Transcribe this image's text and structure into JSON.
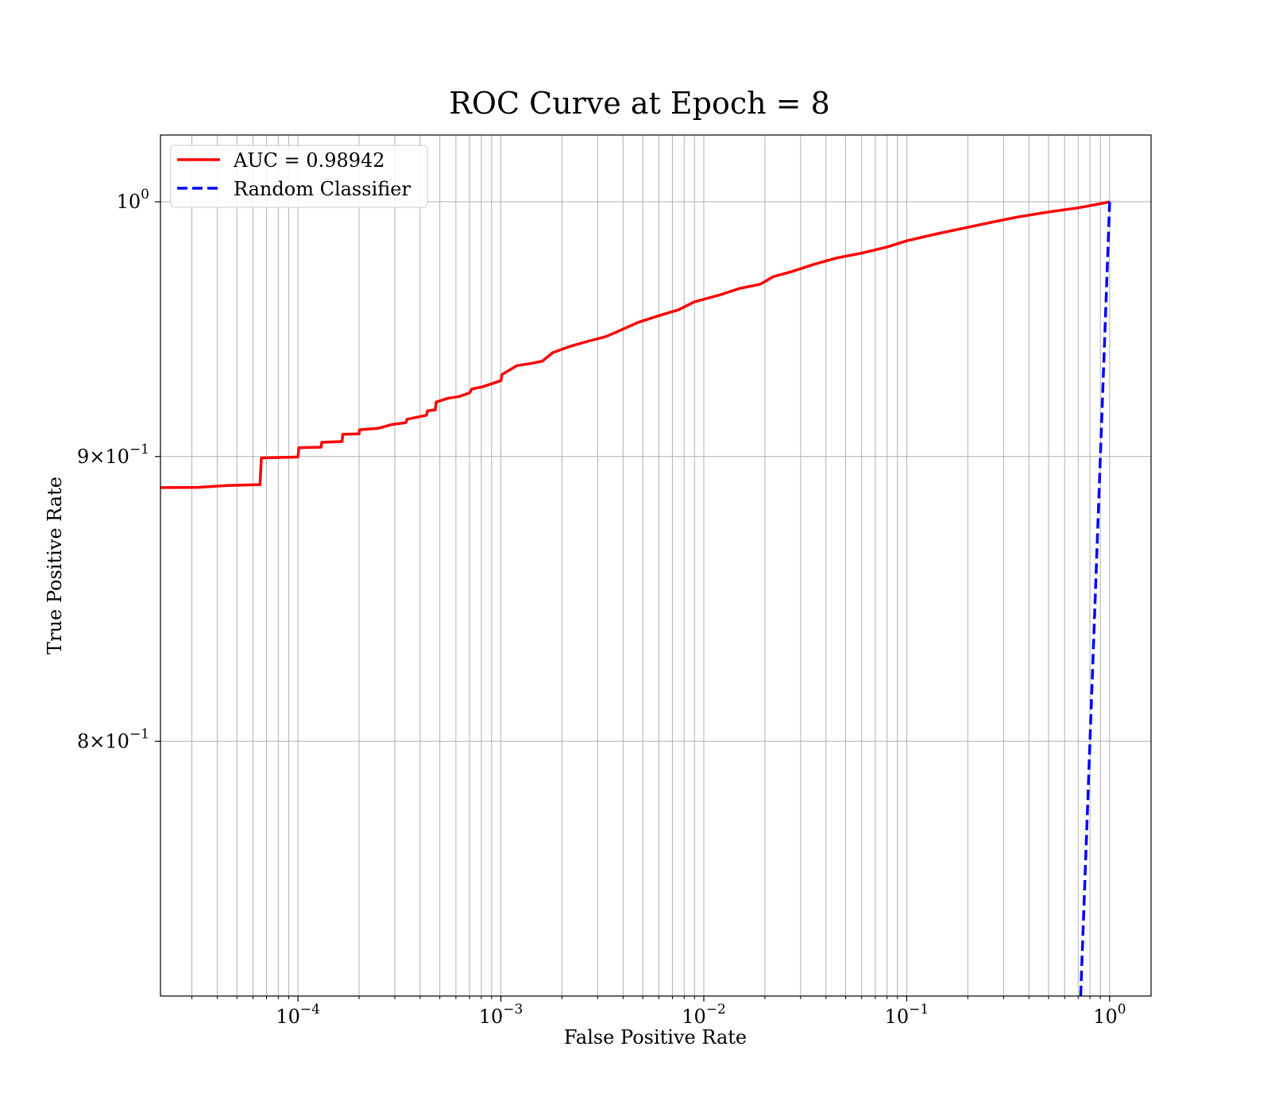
{
  "chart_data": {
    "type": "line",
    "title": "ROC Curve at Epoch = 8",
    "xlabel": "False Positive Rate",
    "ylabel": "True Positive Rate",
    "xscale": "log",
    "yscale": "log",
    "xlim": [
      2.1e-05,
      1.6
    ],
    "ylim": [
      0.72,
      1.028
    ],
    "grid": true,
    "legend_position": "top-left",
    "x_ticks": [
      {
        "value": 0.0001,
        "base": "10",
        "exp": "−4"
      },
      {
        "value": 0.001,
        "base": "10",
        "exp": "−3"
      },
      {
        "value": 0.01,
        "base": "10",
        "exp": "−2"
      },
      {
        "value": 0.1,
        "base": "10",
        "exp": "−1"
      },
      {
        "value": 1,
        "base": "10",
        "exp": "0"
      }
    ],
    "y_ticks": [
      {
        "value": 1.0,
        "mantissa": "",
        "base": "10",
        "exp": "0"
      },
      {
        "value": 0.9,
        "mantissa": "9",
        "base": "10",
        "exp": "−1"
      },
      {
        "value": 0.8,
        "mantissa": "8",
        "base": "10",
        "exp": "−1"
      }
    ],
    "series": [
      {
        "name": "AUC = 0.98942",
        "color": "#ff0000",
        "style": "solid",
        "points": [
          [
            2.1e-05,
            0.8885
          ],
          [
            3.2e-05,
            0.8886
          ],
          [
            4.5e-05,
            0.8893
          ],
          [
            6.5e-05,
            0.8896
          ],
          [
            6.6e-05,
            0.8995
          ],
          [
            0.0001,
            0.8998
          ],
          [
            0.000101,
            0.9033
          ],
          [
            0.00013,
            0.9035
          ],
          [
            0.000131,
            0.9053
          ],
          [
            0.000165,
            0.9056
          ],
          [
            0.000166,
            0.9083
          ],
          [
            0.0002,
            0.9085
          ],
          [
            0.000201,
            0.91
          ],
          [
            0.00025,
            0.9106
          ],
          [
            0.00029,
            0.912
          ],
          [
            0.00034,
            0.9127
          ],
          [
            0.000345,
            0.914
          ],
          [
            0.00043,
            0.9155
          ],
          [
            0.000435,
            0.9172
          ],
          [
            0.000475,
            0.9175
          ],
          [
            0.00048,
            0.9205
          ],
          [
            0.00055,
            0.922
          ],
          [
            0.00062,
            0.9226
          ],
          [
            0.0007,
            0.924
          ],
          [
            0.00072,
            0.9255
          ],
          [
            0.0008,
            0.9262
          ],
          [
            0.0009,
            0.9275
          ],
          [
            0.001,
            0.9287
          ],
          [
            0.00101,
            0.931
          ],
          [
            0.0012,
            0.9345
          ],
          [
            0.0014,
            0.9353
          ],
          [
            0.0016,
            0.9362
          ],
          [
            0.0018,
            0.9395
          ],
          [
            0.0022,
            0.942
          ],
          [
            0.0027,
            0.944
          ],
          [
            0.0033,
            0.9458
          ],
          [
            0.0037,
            0.9475
          ],
          [
            0.0042,
            0.9495
          ],
          [
            0.0048,
            0.9515
          ],
          [
            0.006,
            0.954
          ],
          [
            0.0075,
            0.9563
          ],
          [
            0.009,
            0.9595
          ],
          [
            0.012,
            0.9622
          ],
          [
            0.015,
            0.9648
          ],
          [
            0.019,
            0.9665
          ],
          [
            0.022,
            0.9695
          ],
          [
            0.027,
            0.9715
          ],
          [
            0.035,
            0.9745
          ],
          [
            0.045,
            0.977
          ],
          [
            0.06,
            0.979
          ],
          [
            0.08,
            0.9815
          ],
          [
            0.1,
            0.984
          ],
          [
            0.14,
            0.9868
          ],
          [
            0.2,
            0.9895
          ],
          [
            0.26,
            0.9915
          ],
          [
            0.35,
            0.9937
          ],
          [
            0.5,
            0.9958
          ],
          [
            0.7,
            0.9975
          ],
          [
            0.85,
            0.9988
          ],
          [
            1.0,
            1.0
          ]
        ]
      },
      {
        "name": "Random Classifier",
        "color": "#0000ff",
        "style": "dashed",
        "points": [
          [
            0.72,
            0.72
          ],
          [
            1.0,
            1.0
          ]
        ]
      }
    ]
  }
}
